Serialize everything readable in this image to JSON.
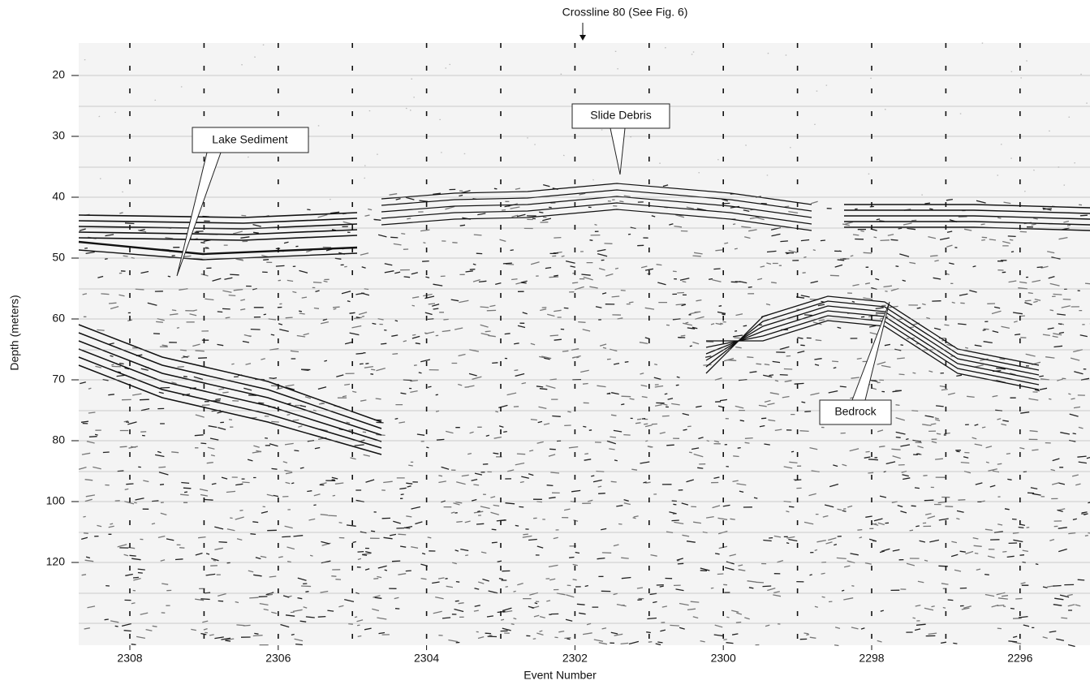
{
  "figure": {
    "top_label": "Crossline 80 (See Fig. 6)",
    "x_axis_label": "Event Number",
    "y_axis_label": "Depth (meters)",
    "y_tick_labels": [
      "20",
      "30",
      "40",
      "50",
      "60",
      "70",
      "80",
      "100",
      "120"
    ],
    "x_tick_labels": [
      "2308",
      "2306",
      "2304",
      "2302",
      "2300",
      "2298",
      "2296"
    ],
    "annotations": [
      "Lake Sediment",
      "Slide Debris",
      "Bedrock"
    ]
  }
}
